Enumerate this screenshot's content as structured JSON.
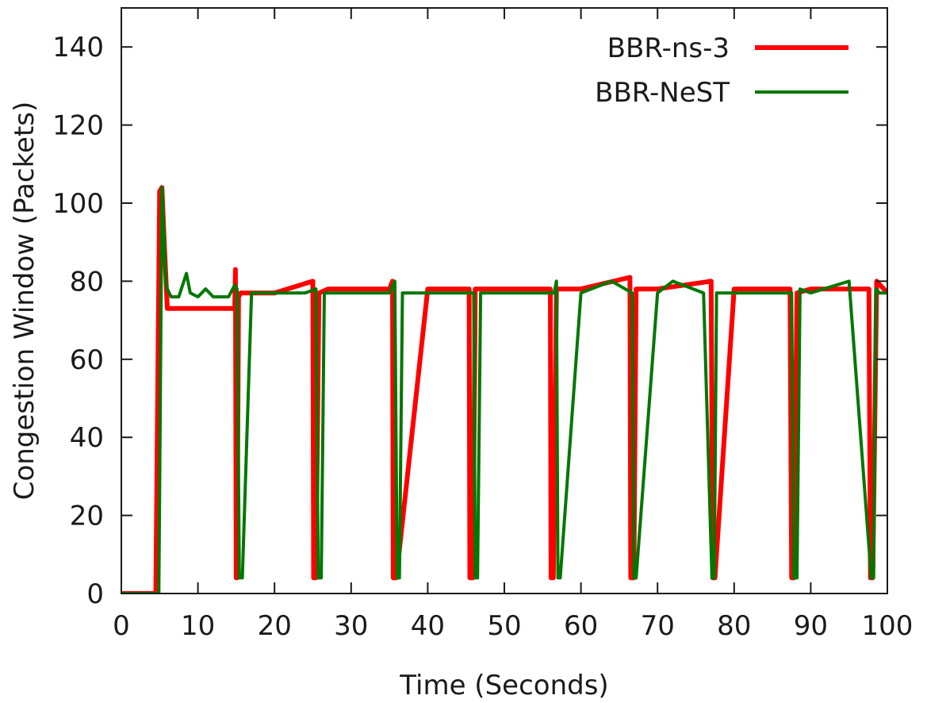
{
  "chart_data": {
    "type": "line",
    "title": "",
    "xlabel": "Time (Seconds)",
    "ylabel": "Congestion Window (Packets)",
    "xlim": [
      0,
      100
    ],
    "ylim": [
      0,
      150
    ],
    "xticks": [
      0,
      10,
      20,
      30,
      40,
      50,
      60,
      70,
      80,
      90,
      100
    ],
    "yticks": [
      0,
      20,
      40,
      60,
      80,
      100,
      120,
      140
    ],
    "grid": false,
    "legend_position": "top-right",
    "series": [
      {
        "name": "BBR-ns-3",
        "color": "#ff0000",
        "x": [
          0,
          4.5,
          5.0,
          5.3,
          5.6,
          6.0,
          14.8,
          14.9,
          15.0,
          15.1,
          15.3,
          15.6,
          17,
          20,
          25.0,
          25.1,
          25.4,
          25.8,
          27,
          35.0,
          35.4,
          35.5,
          35.9,
          40,
          45.4,
          45.5,
          45.9,
          46.2,
          50,
          56.0,
          56.1,
          56.4,
          56.8,
          60,
          66.4,
          66.5,
          66.9,
          67.2,
          70,
          77.0,
          77.2,
          77.5,
          80,
          87.3,
          87.5,
          87.8,
          88.2,
          90,
          97.6,
          97.8,
          98.1,
          98.6,
          100
        ],
        "y": [
          0,
          0,
          103,
          104,
          90,
          73,
          73,
          83,
          4,
          4,
          76,
          77,
          77,
          77,
          80,
          4,
          4,
          77,
          78,
          78,
          80,
          4,
          4,
          78,
          78,
          4,
          4,
          78,
          78,
          78,
          4,
          4,
          78,
          78,
          81,
          4,
          4,
          78,
          78,
          80,
          4,
          4,
          78,
          78,
          4,
          4,
          77,
          78,
          78,
          4,
          4,
          80,
          77
        ]
      },
      {
        "name": "BBR-NeST",
        "color": "#007700",
        "x": [
          0,
          4.9,
          5.3,
          5.5,
          5.8,
          6.0,
          6.5,
          7.5,
          8.5,
          9.0,
          10,
          11,
          12,
          14,
          14.8,
          15.1,
          15.4,
          15.8,
          17,
          20,
          24,
          25.4,
          25.7,
          26.1,
          26.5,
          30,
          35.0,
          35.7,
          36.0,
          36.3,
          36.7,
          40,
          46.0,
          46.2,
          46.5,
          46.9,
          50,
          56.5,
          56.8,
          57.0,
          57.3,
          60,
          64,
          66.7,
          66.9,
          67.2,
          70,
          72,
          76,
          77.1,
          77.4,
          77.7,
          80,
          87.5,
          87.8,
          88.2,
          88.6,
          90,
          95,
          97.9,
          98.2,
          98.5,
          99,
          100
        ],
        "y": [
          0,
          0,
          104,
          95,
          80,
          78,
          76,
          76,
          82,
          77,
          76,
          78,
          76,
          76,
          79,
          78,
          4,
          4,
          77,
          77,
          77,
          78,
          4,
          4,
          77,
          77,
          77,
          80,
          4,
          4,
          77,
          77,
          77,
          4,
          4,
          77,
          77,
          77,
          80,
          4,
          4,
          77,
          80,
          77,
          4,
          4,
          77,
          80,
          77,
          4,
          4,
          77,
          77,
          77,
          4,
          4,
          78,
          77,
          80,
          4,
          4,
          78,
          77,
          77
        ]
      }
    ]
  }
}
